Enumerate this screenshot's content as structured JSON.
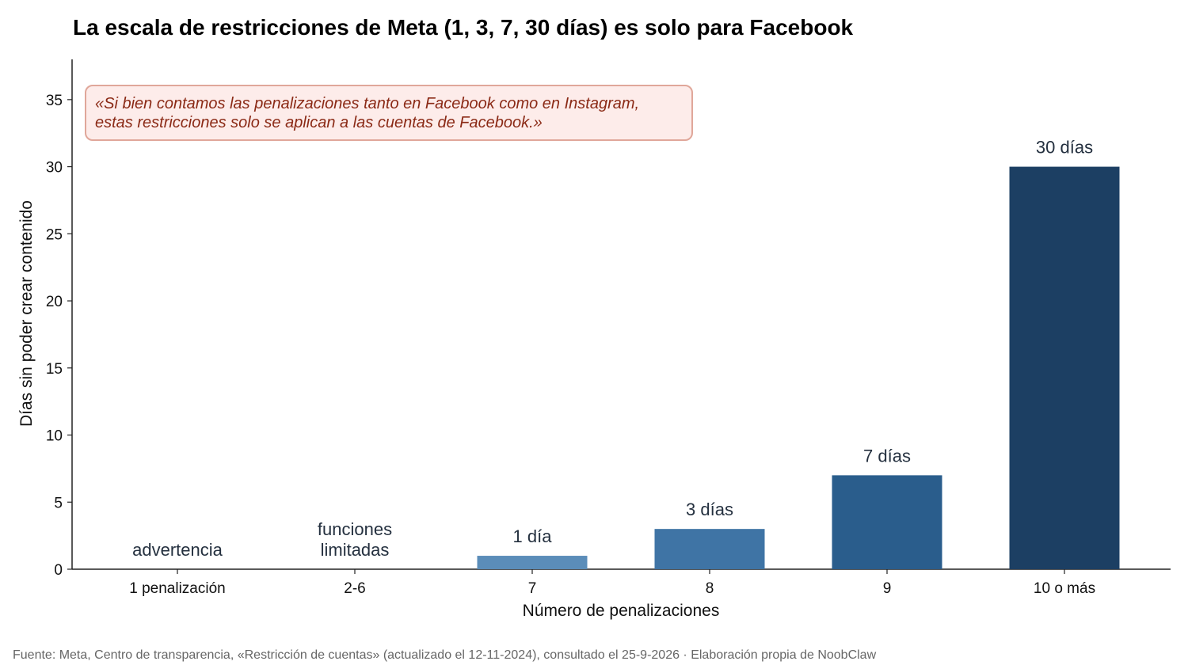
{
  "chart_data": {
    "type": "bar",
    "title": "La escala de restricciones de Meta (1, 3, 7, 30 días) es solo para Facebook",
    "xlabel": "Número de penalizaciones",
    "ylabel": "Días sin poder crear contenido",
    "ylim": [
      0,
      38
    ],
    "yticks": [
      0,
      5,
      10,
      15,
      20,
      25,
      30,
      35
    ],
    "categories": [
      "1 penalización",
      "2-6",
      "7",
      "8",
      "9",
      "10 o más"
    ],
    "values": [
      0,
      0,
      1,
      3,
      7,
      30
    ],
    "bar_labels": [
      [
        "advertencia"
      ],
      [
        "funciones",
        "limitadas"
      ],
      [
        "1 día"
      ],
      [
        "3 días"
      ],
      [
        "7 días"
      ],
      [
        "30 días"
      ]
    ],
    "bar_colors": [
      "#6b9bc3",
      "#6b9bc3",
      "#5b8db9",
      "#3f74a5",
      "#2a5d8c",
      "#1c3f63"
    ],
    "grid": false,
    "annotation": {
      "lines": [
        "«Si bien contamos las penalizaciones tanto en Facebook como en Instagram,",
        "estas restricciones solo se aplican a las cuentas de Facebook.»"
      ],
      "text_color": "#8b2a16",
      "fill_color": "#fdecea",
      "border_color": "#e0a79a"
    }
  },
  "source": "Fuente: Meta, Centro de transparencia, «Restricción de cuentas» (actualizado el 12-11-2024), consultado el 25-9-2026 · Elaboración propia de NoobClaw"
}
